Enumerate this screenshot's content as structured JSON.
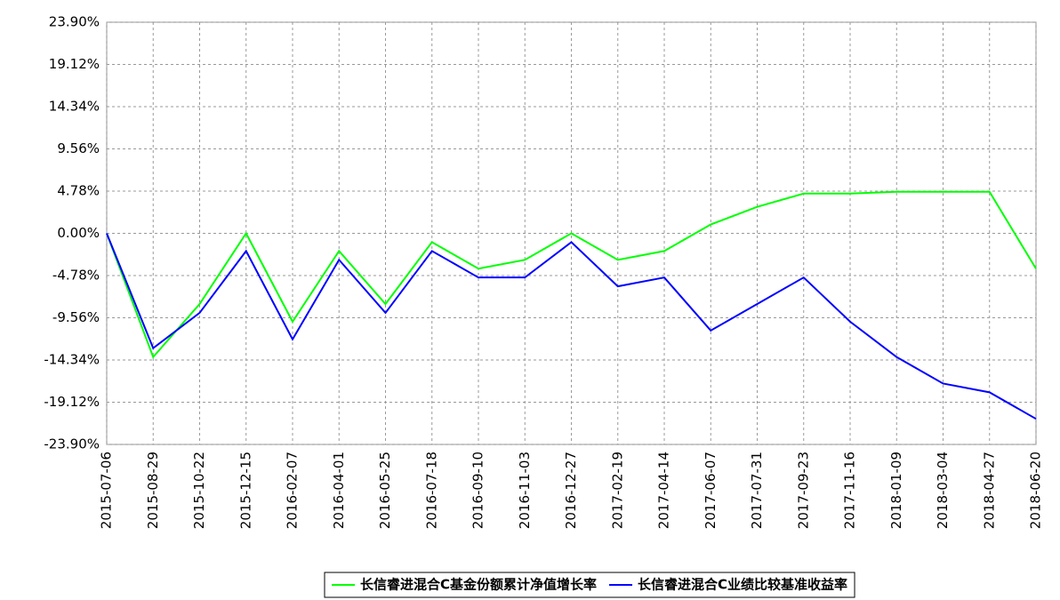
{
  "chart_data": {
    "type": "line",
    "categories": [
      "2015-07-06",
      "2015-08-29",
      "2015-10-22",
      "2015-12-15",
      "2016-02-07",
      "2016-04-01",
      "2016-05-25",
      "2016-07-18",
      "2016-09-10",
      "2016-11-03",
      "2016-12-27",
      "2017-02-19",
      "2017-04-14",
      "2017-06-07",
      "2017-07-31",
      "2017-09-23",
      "2017-11-16",
      "2018-01-09",
      "2018-03-04",
      "2018-04-27",
      "2018-06-20"
    ],
    "series": [
      {
        "name": "长信睿进混合C基金份额累计净值增长率",
        "color": "#00ff00",
        "values": [
          0,
          -14,
          -8,
          0,
          -10,
          -2,
          -8,
          -1,
          -4,
          -3,
          0,
          -3,
          -2,
          1,
          3,
          4.5,
          4.5,
          4.7,
          4.7,
          4.7,
          -4
        ]
      },
      {
        "name": "长信睿进混合C业绩比较基准收益率",
        "color": "#0000ff",
        "values": [
          0,
          -13,
          -9,
          -2,
          -12,
          -3,
          -9,
          -2,
          -5,
          -5,
          -1,
          -6,
          -5,
          -11,
          -8,
          -5,
          -10,
          -14,
          -17,
          -18,
          -21
        ]
      }
    ],
    "ylim": [
      -23.9,
      23.9
    ],
    "yticks": [
      {
        "value": -23.9,
        "label": "-23.90%"
      },
      {
        "value": -19.12,
        "label": "-19.12%"
      },
      {
        "value": -14.34,
        "label": "-14.34%"
      },
      {
        "value": -9.56,
        "label": "-9.56%"
      },
      {
        "value": -4.78,
        "label": "-4.78%"
      },
      {
        "value": 0,
        "label": "0.00%"
      },
      {
        "value": 4.78,
        "label": "4.78%"
      },
      {
        "value": 9.56,
        "label": "9.56%"
      },
      {
        "value": 14.34,
        "label": "14.34%"
      },
      {
        "value": 19.12,
        "label": "19.12%"
      },
      {
        "value": 23.9,
        "label": "23.90%"
      }
    ],
    "grid": true,
    "legend": "bottom"
  }
}
